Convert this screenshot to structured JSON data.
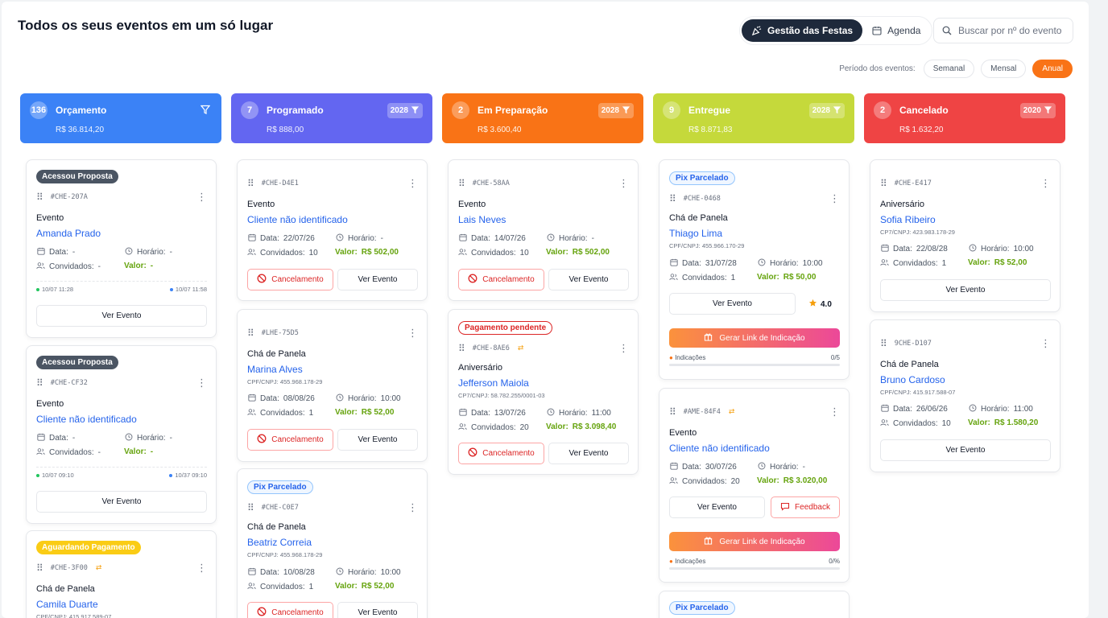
{
  "header": {
    "title": "Todos os seus eventos em um só lugar",
    "tabs": [
      {
        "label": "Gestão das Festas",
        "icon": "party-icon",
        "active": true
      },
      {
        "label": "Agenda",
        "icon": "calendar-icon",
        "active": false
      }
    ],
    "search_placeholder": "Buscar por nº do evento",
    "period_label": "Período dos eventos:",
    "period_options": [
      "Semanal",
      "Mensal",
      "Anual"
    ],
    "period_selected": "Anual"
  },
  "columns": [
    {
      "count": "136",
      "name": "Orçamento",
      "total": "R$ 36.814,20",
      "color": "#3b82f6",
      "year": ""
    },
    {
      "count": "7",
      "name": "Programado",
      "total": "R$ 888,00",
      "color": "#6366f1",
      "year": "2028"
    },
    {
      "count": "2",
      "name": "Em Preparação",
      "total": "R$ 3.600,40",
      "color": "#f97316",
      "year": "2028"
    },
    {
      "count": "9",
      "name": "Entregue",
      "total": "R$ 8.871,83",
      "color": "#c5d93b",
      "year": "2028"
    },
    {
      "count": "2",
      "name": "Cancelado",
      "total": "R$ 1.632,20",
      "color": "#ef4444",
      "year": "2020"
    }
  ],
  "labels": {
    "data": "Data:",
    "horario": "Horário:",
    "convidados": "Convidados:",
    "valor": "Valor:",
    "ver_evento": "Ver Evento",
    "cancelamento": "Cancelamento",
    "feedback": "Feedback",
    "gerar_link": "Gerar Link de Indicação",
    "indicacoes": "Indicações"
  },
  "cards": {
    "c0_0": {
      "tag": "Acessou Proposta",
      "id": "#CHE-207A",
      "type": "Evento",
      "client": "Amanda Prado",
      "data": "-",
      "horario": "-",
      "convidados": "-",
      "valor": "-",
      "t1": "10/07 11:28",
      "t2": "10/07 11:58"
    },
    "c0_1": {
      "tag": "Acessou Proposta",
      "id": "#CHE-CF32",
      "type": "Evento",
      "client": "Cliente não identificado",
      "data": "-",
      "horario": "-",
      "convidados": "-",
      "valor": "-",
      "t1": "10/07 09:10",
      "t2": "10/37 09:10"
    },
    "c0_2": {
      "tag": "Aguardando Pagamento",
      "id": "#CHE-3F00",
      "type": "Chá de Panela",
      "client": "Camila Duarte",
      "cpf": "CPF/CNPJ: 415.917.589-07"
    },
    "c1_0": {
      "id": "#CHE-D4E1",
      "type": "Evento",
      "client": "Cliente não identificado",
      "data": "22/07/26",
      "horario": "-",
      "convidados": "10",
      "valor": "R$ 502,00"
    },
    "c1_1": {
      "id": "#LHE-75D5",
      "type": "Chá de Panela",
      "client": "Marina Alves",
      "cpf": "CPF/CNPJ: 455.968.178-29",
      "data": "08/08/26",
      "horario": "10:00",
      "convidados": "1",
      "valor": "R$ 52,00"
    },
    "c1_2": {
      "tag": "Pix Parcelado",
      "id": "#CHE-C0E7",
      "type": "Chá de Panela",
      "client": "Beatriz Correia",
      "cpf": "CPF/CNPJ: 455.968.178-29",
      "data": "10/08/28",
      "horario": "10:00",
      "convidados": "1",
      "valor": "R$ 52,00"
    },
    "c2_0": {
      "id": "#CHE-58AA",
      "type": "Evento",
      "client": "Lais Neves",
      "data": "14/07/26",
      "horario": "-",
      "convidados": "10",
      "valor": "R$ 502,00"
    },
    "c2_1": {
      "tag": "Pagamento pendente",
      "id": "#CHE-8AE6",
      "type": "Aniversário",
      "client": "Jefferson Maiola",
      "cpf": "CP7/CNPJ: 58.782.255/0001-03",
      "data": "13/07/26",
      "horario": "11:00",
      "convidados": "20",
      "valor": "R$ 3.098,40"
    },
    "c3_0": {
      "tag": "Pix Parcelado",
      "id": "#CHE-0468",
      "type": "Chá de Panela",
      "client": "Thiago Lima",
      "cpf": "CPF/CNPJ: 455.966.170-29",
      "data": "31/07/28",
      "horario": "10:00",
      "convidados": "1",
      "valor": "R$ 50,00",
      "rating": "4.0",
      "ind": "0/5"
    },
    "c3_1": {
      "id": "#AME-84F4",
      "type": "Evento",
      "client": "Cliente não identificado",
      "data": "30/07/26",
      "horario": "-",
      "convidados": "20",
      "valor": "R$ 3.020,00",
      "ind": "0/%"
    },
    "c3_2": {
      "tag": "Pix Parcelado"
    },
    "c4_0": {
      "id": "#CHE-E417",
      "type": "Aniversário",
      "client": "Sofia Ribeiro",
      "cpf": "CP7/CNPJ: 423.983.178-29",
      "data": "22/08/28",
      "horario": "10:00",
      "convidados": "1",
      "valor": "R$ 52,00"
    },
    "c4_1": {
      "id": "9CHE-D107",
      "type": "Chá de Panela",
      "client": "Bruno Cardoso",
      "cpf": "CPF/CNPJ: 415.917.588-07",
      "data": "26/06/26",
      "horario": "11:00",
      "convidados": "10",
      "valor": "R$ 1.580,20"
    }
  }
}
